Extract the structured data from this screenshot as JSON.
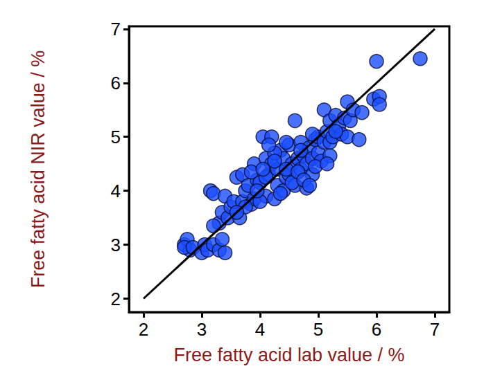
{
  "chart_data": {
    "type": "scatter",
    "x_label": "Free fatty acid lab value / %",
    "y_label": "Free fatty acid NIR value / %",
    "xlim": [
      1.75,
      7.25
    ],
    "ylim": [
      1.75,
      7.05
    ],
    "xticks": [
      2,
      3,
      4,
      5,
      6,
      7
    ],
    "yticks": [
      2,
      3,
      4,
      5,
      6,
      7
    ],
    "grid": false,
    "series": [
      {
        "type": "scatter",
        "color": "#1a4dff",
        "marker": "circle",
        "x": [
          2.7,
          2.75,
          2.8,
          2.7,
          2.85,
          3.0,
          3.05,
          3.1,
          3.2,
          3.15,
          3.2,
          3.3,
          3.4,
          3.35,
          3.4,
          3.3,
          3.2,
          3.35,
          3.45,
          3.5,
          3.55,
          3.6,
          3.65,
          3.7,
          3.75,
          3.7,
          3.8,
          3.85,
          3.9,
          3.95,
          3.9,
          4.0,
          4.05,
          4.1,
          4.1,
          4.15,
          4.2,
          4.2,
          4.25,
          4.3,
          4.3,
          4.35,
          4.4,
          4.4,
          4.45,
          4.5,
          4.5,
          4.55,
          4.6,
          4.6,
          4.65,
          4.7,
          4.7,
          4.75,
          4.8,
          4.8,
          4.85,
          4.9,
          4.9,
          4.95,
          5.0,
          5.0,
          5.05,
          5.1,
          5.1,
          5.15,
          5.2,
          5.2,
          5.25,
          5.3,
          5.35,
          5.4,
          5.45,
          5.5,
          5.5,
          5.55,
          5.6,
          5.7,
          5.75,
          5.95,
          6.0,
          6.05,
          6.05,
          6.75,
          4.0,
          4.1,
          4.25,
          4.35,
          4.45,
          4.55,
          4.65,
          4.75,
          4.85,
          4.95,
          3.95,
          3.85,
          4.15,
          4.05,
          3.75,
          3.6,
          4.45,
          4.25,
          5.2,
          5.15,
          5.3,
          4.9,
          4.7
        ],
        "values": [
          3.0,
          3.1,
          2.9,
          2.95,
          2.95,
          2.85,
          3.0,
          2.9,
          3.0,
          4.0,
          3.95,
          2.9,
          2.85,
          3.1,
          3.9,
          3.4,
          3.35,
          3.6,
          3.5,
          3.7,
          3.8,
          4.25,
          3.5,
          3.8,
          4.0,
          4.3,
          4.1,
          3.75,
          4.5,
          4.2,
          3.85,
          4.15,
          5.0,
          4.6,
          3.9,
          4.3,
          5.0,
          4.5,
          3.85,
          4.4,
          4.1,
          4.75,
          4.0,
          4.6,
          4.25,
          4.3,
          4.85,
          4.5,
          5.3,
          4.1,
          4.6,
          4.4,
          4.9,
          4.65,
          4.05,
          4.5,
          4.8,
          4.6,
          4.3,
          4.95,
          4.7,
          5.0,
          4.55,
          5.5,
          4.9,
          5.1,
          4.9,
          5.3,
          5.0,
          5.4,
          5.2,
          5.05,
          5.35,
          5.65,
          5.0,
          5.3,
          5.5,
          4.95,
          5.45,
          5.7,
          6.4,
          5.75,
          5.6,
          6.45,
          3.8,
          4.25,
          4.7,
          3.95,
          4.4,
          4.15,
          4.35,
          4.2,
          4.1,
          4.45,
          4.0,
          4.35,
          4.85,
          4.4,
          3.7,
          3.6,
          4.9,
          4.55,
          4.65,
          4.5,
          5.1,
          5.05,
          4.75
        ]
      },
      {
        "type": "line",
        "color": "#000000",
        "line_style": "solid",
        "x": [
          2,
          7
        ],
        "values": [
          2,
          7
        ]
      }
    ]
  }
}
